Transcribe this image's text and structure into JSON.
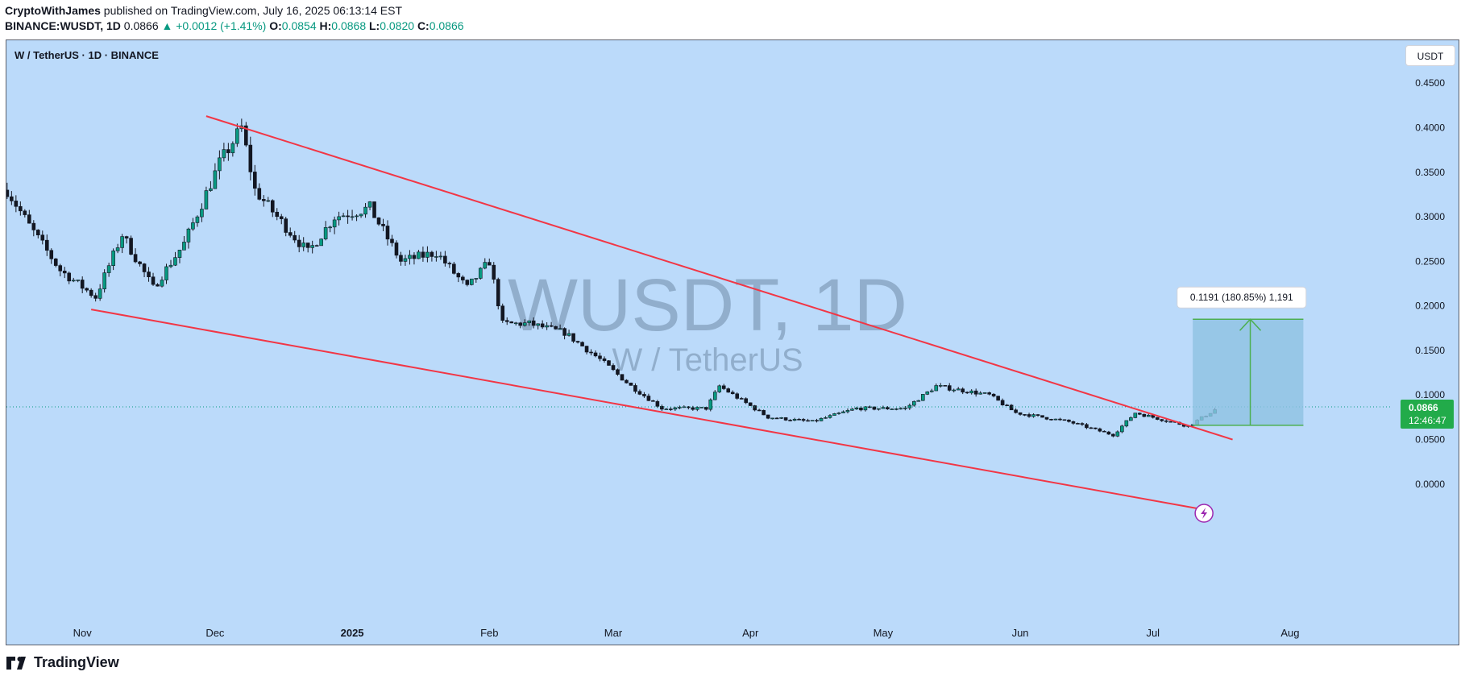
{
  "header": {
    "author": "CryptoWithJames",
    "published": "published on TradingView.com, July 16, 2025 06:13:14 EST",
    "symbol_line": "BINANCE:WUSDT, 1D",
    "last": "0.0866",
    "change": "▲ +0.0012 (+1.41%)",
    "o_label": "O:",
    "o": "0.0854",
    "h_label": "H:",
    "h": "0.0868",
    "l_label": "L:",
    "l": "0.0820",
    "c_label": "C:",
    "c": "0.0866"
  },
  "legend": "W / TetherUS · 1D · BINANCE",
  "currency_button": "USDT",
  "watermark": {
    "big": "WUSDT, 1D",
    "small": "W / TetherUS"
  },
  "footer": {
    "brand": "TradingView"
  },
  "colors": {
    "bg": "#bbdafa",
    "up": "#089981",
    "down": "#131722",
    "trend": "#f23645",
    "projection": "#4caf50"
  },
  "chart_data": {
    "type": "candlestick",
    "ylim": [
      -0.03,
      0.49
    ],
    "y_ticks": [
      "0.4500",
      "0.4000",
      "0.3500",
      "0.3000",
      "0.2500",
      "0.2000",
      "0.1500",
      "0.1000",
      "0.0500",
      "0.0000"
    ],
    "x_ticks": [
      "Nov",
      "Dec",
      "2025",
      "Feb",
      "Mar",
      "Apr",
      "May",
      "Jun",
      "Jul",
      "Aug"
    ],
    "price_anchors": [
      {
        "date": "2024-10-15",
        "close": 0.33
      },
      {
        "date": "2024-10-20",
        "close": 0.29
      },
      {
        "date": "2024-10-27",
        "close": 0.24
      },
      {
        "date": "2024-11-04",
        "close": 0.21
      },
      {
        "date": "2024-11-10",
        "close": 0.28
      },
      {
        "date": "2024-11-17",
        "close": 0.22
      },
      {
        "date": "2024-11-24",
        "close": 0.27
      },
      {
        "date": "2024-12-02",
        "close": 0.36
      },
      {
        "date": "2024-12-07",
        "close": 0.4
      },
      {
        "date": "2024-12-10",
        "close": 0.33
      },
      {
        "date": "2024-12-15",
        "close": 0.3
      },
      {
        "date": "2024-12-22",
        "close": 0.26
      },
      {
        "date": "2024-12-28",
        "close": 0.3
      },
      {
        "date": "2025-01-05",
        "close": 0.31
      },
      {
        "date": "2025-01-12",
        "close": 0.25
      },
      {
        "date": "2025-01-20",
        "close": 0.26
      },
      {
        "date": "2025-01-27",
        "close": 0.22
      },
      {
        "date": "2025-02-01",
        "close": 0.25
      },
      {
        "date": "2025-02-04",
        "close": 0.18
      },
      {
        "date": "2025-02-10",
        "close": 0.18
      },
      {
        "date": "2025-02-18",
        "close": 0.17
      },
      {
        "date": "2025-02-26",
        "close": 0.14
      },
      {
        "date": "2025-03-05",
        "close": 0.11
      },
      {
        "date": "2025-03-12",
        "close": 0.085
      },
      {
        "date": "2025-03-22",
        "close": 0.085
      },
      {
        "date": "2025-03-25",
        "close": 0.11
      },
      {
        "date": "2025-04-05",
        "close": 0.075
      },
      {
        "date": "2025-04-15",
        "close": 0.07
      },
      {
        "date": "2025-04-25",
        "close": 0.085
      },
      {
        "date": "2025-05-06",
        "close": 0.085
      },
      {
        "date": "2025-05-13",
        "close": 0.11
      },
      {
        "date": "2025-05-25",
        "close": 0.1
      },
      {
        "date": "2025-05-31",
        "close": 0.08
      },
      {
        "date": "2025-06-12",
        "close": 0.07
      },
      {
        "date": "2025-06-22",
        "close": 0.055
      },
      {
        "date": "2025-06-27",
        "close": 0.08
      },
      {
        "date": "2025-07-09",
        "close": 0.065
      },
      {
        "date": "2025-07-16",
        "close": 0.0866
      }
    ],
    "trendlines": [
      {
        "name": "upper",
        "from": {
          "date": "2024-11-29",
          "price": 0.413
        },
        "to": {
          "date": "2025-07-19",
          "price": 0.05
        }
      },
      {
        "name": "lower",
        "from": {
          "date": "2024-11-03",
          "price": 0.196
        },
        "to": {
          "date": "2025-07-14",
          "price": -0.03
        }
      }
    ],
    "projection": {
      "label": "0.1191 (180.85%) 1,191",
      "from_price": 0.066,
      "to_price": 0.185,
      "from_date": "2025-07-10",
      "to_date": "2025-08-04"
    },
    "current_price": {
      "value": 0.0866,
      "label": "0.0866",
      "countdown": "12:46:47"
    }
  }
}
